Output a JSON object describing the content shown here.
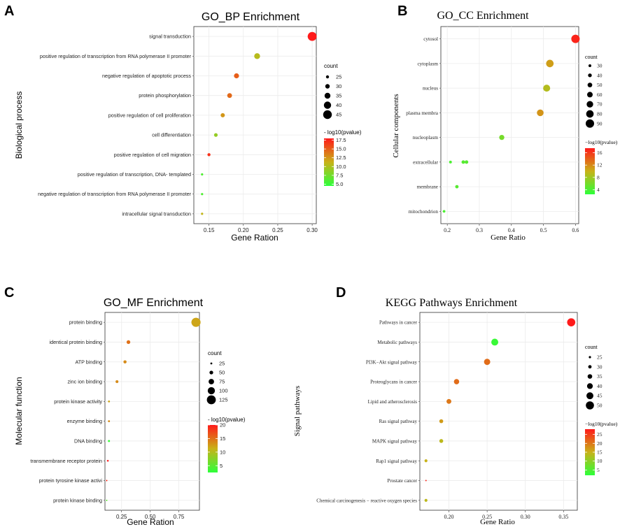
{
  "chart_data": [
    {
      "panel": "A",
      "type": "scatter",
      "font": "sans",
      "title": "GO_BP Enrichment",
      "xlabel": "Gene Ration",
      "ylabel": "Biological process",
      "xlim": [
        0.128,
        0.306
      ],
      "xticks": [
        0.15,
        0.2,
        0.25,
        0.3
      ],
      "xtick_labels": [
        "0.15",
        "0.20",
        "0.25",
        "0.30"
      ],
      "grid": true,
      "categories": [
        "signal transduction",
        "positive regulation of transcription from RNA polymerase II promoter",
        "negative regulation of apoptotic process",
        "protein phosphorylation",
        "positive regulation of cell proliferation",
        "cell differentiation",
        "positive regulation of cell migration",
        "positive regulation of transcription, DNA- templated",
        "negative regulation of transcription from RNA polymerase II promoter",
        "intracellular signal transduction"
      ],
      "points": [
        {
          "category": "signal transduction",
          "x": 0.3,
          "count": 46,
          "pvalue": 18.0
        },
        {
          "category": "positive regulation of transcription from RNA polymerase II promoter",
          "x": 0.22,
          "count": 35,
          "pvalue": 10.5
        },
        {
          "category": "negative regulation of apoptotic process",
          "x": 0.19,
          "count": 32,
          "pvalue": 15.0
        },
        {
          "category": "protein phosphorylation",
          "x": 0.18,
          "count": 31,
          "pvalue": 14.5
        },
        {
          "category": "positive regulation of cell proliferation",
          "x": 0.17,
          "count": 29,
          "pvalue": 12.5
        },
        {
          "category": "cell differentiation",
          "x": 0.16,
          "count": 27,
          "pvalue": 9.0
        },
        {
          "category": "positive regulation of cell migration",
          "x": 0.15,
          "count": 25,
          "pvalue": 17.0
        },
        {
          "category": "positive regulation of transcription, DNA- templated",
          "x": 0.14,
          "count": 22,
          "pvalue": 6.0
        },
        {
          "category": "negative regulation of transcription from RNA polymerase II promoter",
          "x": 0.14,
          "count": 22,
          "pvalue": 6.0
        },
        {
          "category": "intracellular signal transduction",
          "x": 0.14,
          "count": 22,
          "pvalue": 11.0
        }
      ],
      "size_legend": {
        "title": "count",
        "values": [
          25,
          30,
          35,
          40,
          45
        ]
      },
      "color_legend": {
        "title": "- log10(pvalue)",
        "range": [
          4.5,
          18
        ],
        "ticks": [
          5.0,
          7.5,
          10.0,
          12.5,
          15.0,
          17.5
        ],
        "tick_labels": [
          "5.0",
          "7.5",
          "10.0",
          "12.5",
          "15.0",
          "17.5"
        ]
      }
    },
    {
      "panel": "B",
      "type": "scatter",
      "font": "serif",
      "title": "GO_CC Enrichment",
      "xlabel": "Gene Ratio",
      "ylabel": "Cellular components",
      "xlim": [
        0.18,
        0.61
      ],
      "xticks": [
        0.2,
        0.3,
        0.4,
        0.5,
        0.6
      ],
      "xtick_labels": [
        "0.2",
        "0.3",
        "0.4",
        "0.5",
        "0.6"
      ],
      "grid": true,
      "categories": [
        "cytosol",
        "cytoplasm",
        "nucleus",
        "plasma membra",
        "nucleoplasm",
        "extracellular",
        "membrane",
        "mitochondrion"
      ],
      "points": [
        {
          "category": "cytosol",
          "x": 0.6,
          "count": 90,
          "pvalue": 17.0
        },
        {
          "category": "cytoplasm",
          "x": 0.52,
          "count": 80,
          "pvalue": 11.0
        },
        {
          "category": "nucleus",
          "x": 0.51,
          "count": 75,
          "pvalue": 9.0
        },
        {
          "category": "plasma membra",
          "x": 0.49,
          "count": 72,
          "pvalue": 11.5
        },
        {
          "category": "nucleoplasm",
          "x": 0.37,
          "count": 55,
          "pvalue": 6.0
        },
        {
          "category": "extracellular",
          "x": 0.21,
          "count": 30,
          "pvalue": 4.0
        },
        {
          "category": "extracellular",
          "x": 0.25,
          "count": 38,
          "pvalue": 4.5
        },
        {
          "category": "extracellular",
          "x": 0.26,
          "count": 38,
          "pvalue": 4.5
        },
        {
          "category": "membrane",
          "x": 0.23,
          "count": 36,
          "pvalue": 4.5
        },
        {
          "category": "mitochondrion",
          "x": 0.19,
          "count": 28,
          "pvalue": 4.0
        }
      ],
      "size_legend": {
        "title": "count",
        "values": [
          30,
          40,
          50,
          60,
          70,
          80,
          90
        ]
      },
      "color_legend": {
        "title": "−log10(pvalue)",
        "range": [
          2.5,
          17.5
        ],
        "ticks": [
          4,
          8,
          12,
          16
        ],
        "tick_labels": [
          "4",
          "8",
          "12",
          "16"
        ]
      }
    },
    {
      "panel": "C",
      "type": "scatter",
      "font": "sans",
      "title": "GO_MF Enrichment",
      "xlabel": "Gene Ration",
      "ylabel": "Molecular function",
      "xlim": [
        0.105,
        0.93
      ],
      "xticks": [
        0.25,
        0.5,
        0.75
      ],
      "xtick_labels": [
        "0.25",
        "0.50",
        "0.75"
      ],
      "grid": true,
      "categories": [
        "protein binding",
        "identical protein binding",
        "ATP binding",
        "zinc ion binding",
        "protein kinase activity",
        "enzyme binding",
        "DNA binding",
        "transmembrane receptor protein",
        "protein tyrosine kinase activi",
        "protein kinase binding"
      ],
      "points": [
        {
          "category": "protein binding",
          "x": 0.9,
          "count": 128,
          "pvalue": 12.0
        },
        {
          "category": "identical protein binding",
          "x": 0.31,
          "count": 50,
          "pvalue": 15.0
        },
        {
          "category": "ATP binding",
          "x": 0.28,
          "count": 42,
          "pvalue": 13.5
        },
        {
          "category": "zinc ion binding",
          "x": 0.21,
          "count": 38,
          "pvalue": 13.5
        },
        {
          "category": "protein kinase activity",
          "x": 0.14,
          "count": 25,
          "pvalue": 12.0
        },
        {
          "category": "enzyme binding",
          "x": 0.14,
          "count": 25,
          "pvalue": 13.5
        },
        {
          "category": "DNA binding",
          "x": 0.14,
          "count": 26,
          "pvalue": 3.0
        },
        {
          "category": "transmembrane receptor protein",
          "x": 0.13,
          "count": 22,
          "pvalue": 20.0
        },
        {
          "category": "protein tyrosine kinase activi",
          "x": 0.12,
          "count": 18,
          "pvalue": 19.0
        },
        {
          "category": "protein kinase binding",
          "x": 0.12,
          "count": 15,
          "pvalue": 5.0
        }
      ],
      "size_legend": {
        "title": "count",
        "values": [
          25,
          50,
          75,
          100,
          125
        ]
      },
      "color_legend": {
        "title": "- log10(pvalue)",
        "range": [
          2.5,
          20
        ],
        "ticks": [
          5,
          10,
          15,
          20
        ],
        "tick_labels": [
          "5",
          "10",
          "15",
          "20"
        ]
      }
    },
    {
      "panel": "D",
      "type": "scatter",
      "font": "serif",
      "title": "KEGG Pathways Enrichment",
      "xlabel": "Gene Ratio",
      "ylabel": "Signal pathways",
      "xlim": [
        0.162,
        0.368
      ],
      "xticks": [
        0.2,
        0.25,
        0.3,
        0.35
      ],
      "xtick_labels": [
        "0.20",
        "0.25",
        "0.30",
        "0.35"
      ],
      "grid": true,
      "categories": [
        "Pathways in cancer",
        "Metabolic pathways",
        "PI3K−Akt signal pathway",
        "Proteoglycans in cancer",
        "Lipid and atherosclerosis",
        "Ras signal pathway",
        "MAPK signal pathway",
        "Rap1 signal pathway",
        "Prostate cancer",
        "Chemical carcinogenesis − reactive oxygen species"
      ],
      "points": [
        {
          "category": "Pathways in cancer",
          "x": 0.36,
          "count": 50,
          "pvalue": 28.0
        },
        {
          "category": "Metabolic pathways",
          "x": 0.26,
          "count": 45,
          "pvalue": 3.0
        },
        {
          "category": "PI3K−Akt signal pathway",
          "x": 0.25,
          "count": 42,
          "pvalue": 21.0
        },
        {
          "category": "Proteoglycans in cancer",
          "x": 0.21,
          "count": 38,
          "pvalue": 21.0
        },
        {
          "category": "Lipid and atherosclerosis",
          "x": 0.2,
          "count": 36,
          "pvalue": 20.0
        },
        {
          "category": "Ras signal pathway",
          "x": 0.19,
          "count": 32,
          "pvalue": 17.0
        },
        {
          "category": "MAPK signal pathway",
          "x": 0.19,
          "count": 32,
          "pvalue": 14.0
        },
        {
          "category": "Rap1 signal pathway",
          "x": 0.17,
          "count": 28,
          "pvalue": 15.0
        },
        {
          "category": "Prostate cancer",
          "x": 0.17,
          "count": 20,
          "pvalue": 27.0
        },
        {
          "category": "Chemical carcinogenesis − reactive oxygen species",
          "x": 0.17,
          "count": 28,
          "pvalue": 14.0
        }
      ],
      "size_legend": {
        "title": "count",
        "values": [
          25,
          30,
          35,
          40,
          45,
          50
        ]
      },
      "color_legend": {
        "title": "−log10(pvalue)",
        "range": [
          2,
          28
        ],
        "ticks": [
          5,
          10,
          15,
          20,
          25
        ],
        "tick_labels": [
          "5",
          "10",
          "15",
          "20",
          "25"
        ]
      }
    }
  ]
}
